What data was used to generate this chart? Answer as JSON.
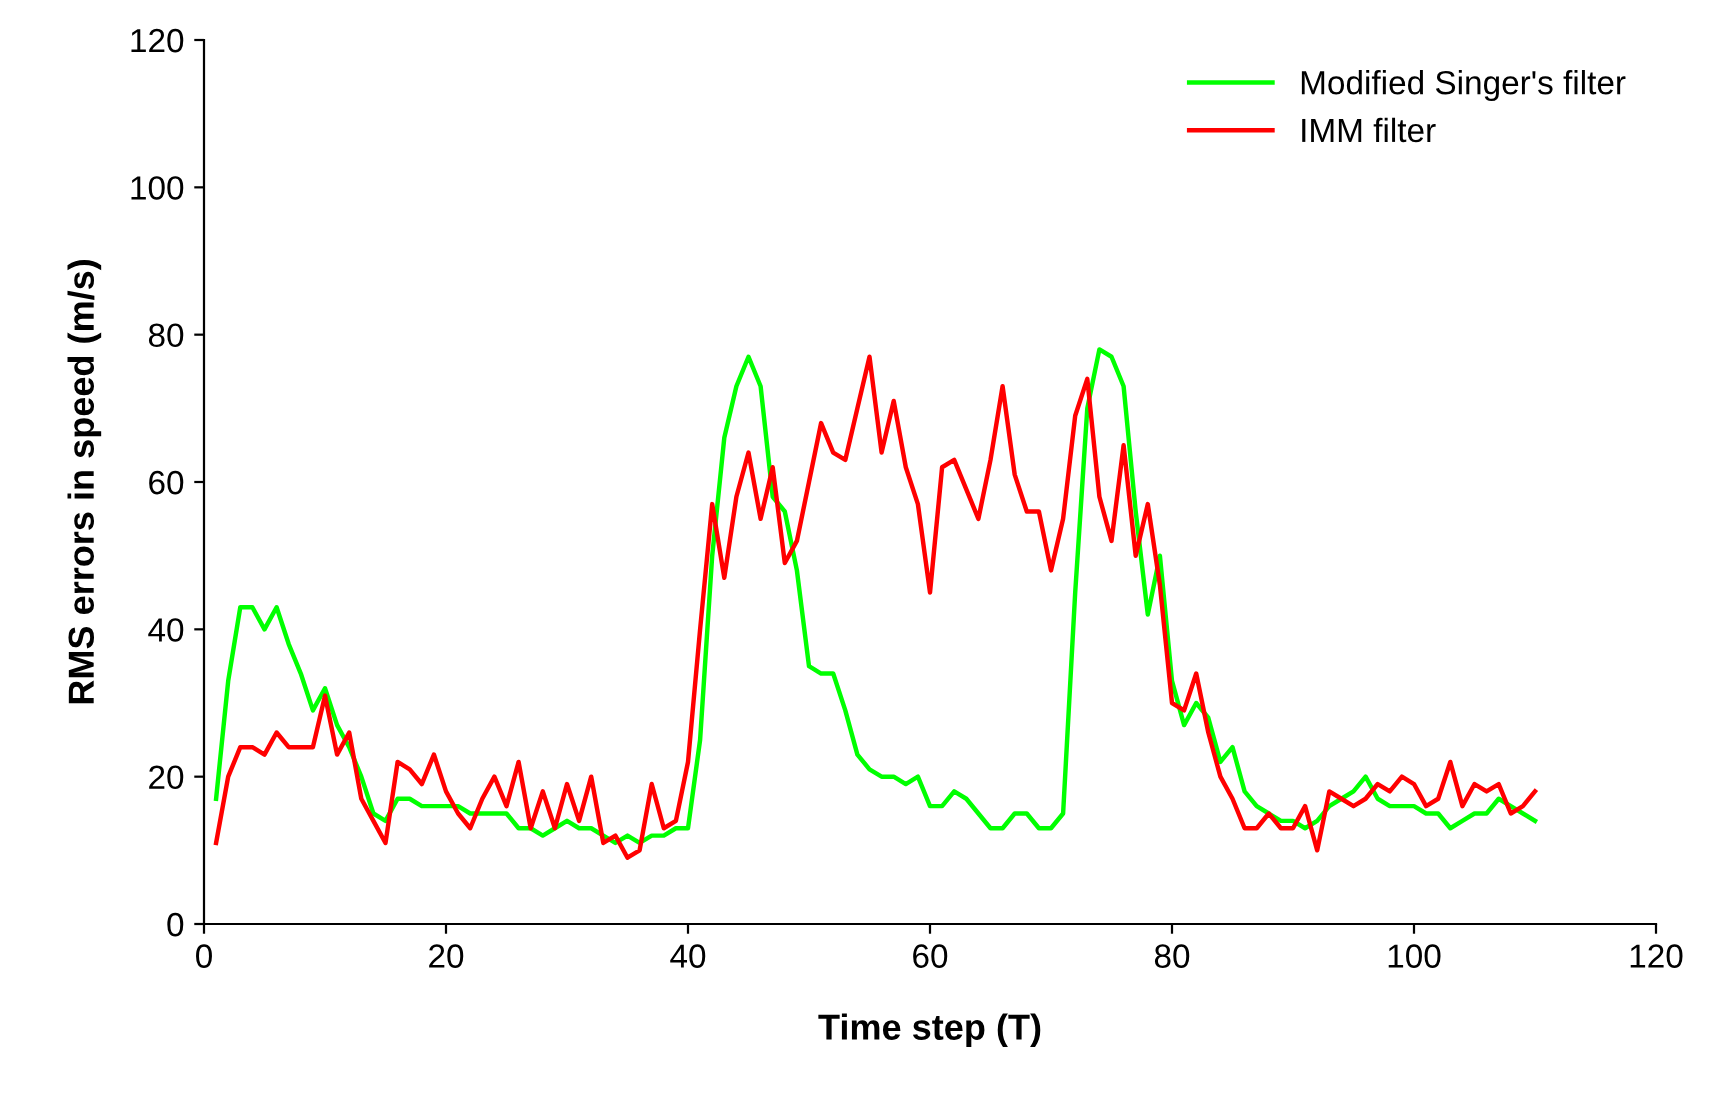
{
  "chart_data": {
    "type": "line",
    "xlabel": "Time step (T)",
    "ylabel": "RMS errors in speed (m/s)",
    "xlim": [
      0,
      120
    ],
    "xticks": [
      0,
      20,
      40,
      60,
      80,
      100,
      120
    ],
    "ylim": [
      0,
      120
    ],
    "yticks": [
      0,
      20,
      40,
      60,
      80,
      100,
      120
    ],
    "grid": false,
    "legend": "top right",
    "marker": "none",
    "line_style": "solid",
    "x": [
      1,
      2,
      3,
      4,
      5,
      6,
      7,
      8,
      9,
      10,
      11,
      12,
      13,
      14,
      15,
      16,
      17,
      18,
      19,
      20,
      21,
      22,
      23,
      24,
      25,
      26,
      27,
      28,
      29,
      30,
      31,
      32,
      33,
      34,
      35,
      36,
      37,
      38,
      39,
      40,
      41,
      42,
      43,
      44,
      45,
      46,
      47,
      48,
      49,
      50,
      51,
      52,
      53,
      54,
      55,
      56,
      57,
      58,
      59,
      60,
      61,
      62,
      63,
      64,
      65,
      66,
      67,
      68,
      69,
      70,
      71,
      72,
      73,
      74,
      75,
      76,
      77,
      78,
      79,
      80,
      81,
      82,
      83,
      84,
      85,
      86,
      87,
      88,
      89,
      90,
      91,
      92,
      93,
      94,
      95,
      96,
      97,
      98,
      99,
      100,
      101,
      102,
      103,
      104,
      105,
      106,
      107,
      108,
      109,
      110
    ],
    "series": [
      {
        "name": "Modified Singer's filter",
        "color": "#00ff00",
        "values": [
          17,
          33,
          43,
          43,
          40,
          43,
          38,
          34,
          29,
          32,
          27,
          24,
          20,
          15,
          14,
          17,
          17,
          16,
          16,
          16,
          16,
          15,
          15,
          15,
          15,
          13,
          13,
          12,
          13,
          14,
          13,
          13,
          12,
          11,
          12,
          11,
          12,
          12,
          13,
          13,
          25,
          50,
          66,
          73,
          77,
          73,
          58,
          56,
          48,
          35,
          34,
          34,
          29,
          23,
          21,
          20,
          20,
          19,
          20,
          16,
          16,
          18,
          17,
          15,
          13,
          13,
          15,
          15,
          13,
          13,
          15,
          45,
          70,
          78,
          77,
          73,
          56,
          42,
          50,
          33,
          27,
          30,
          28,
          22,
          24,
          18,
          16,
          15,
          14,
          14,
          13,
          14,
          16,
          17,
          18,
          20,
          17,
          16,
          16,
          16,
          15,
          15,
          13,
          14,
          15,
          15,
          17,
          16,
          15,
          14
        ]
      },
      {
        "name": "IMM filter",
        "color": "#ff0000",
        "values": [
          11,
          20,
          24,
          24,
          23,
          26,
          24,
          24,
          24,
          31,
          23,
          26,
          17,
          14,
          11,
          22,
          21,
          19,
          23,
          18,
          15,
          13,
          17,
          20,
          16,
          22,
          13,
          18,
          13,
          19,
          14,
          20,
          11,
          12,
          9,
          10,
          19,
          13,
          14,
          22,
          40,
          57,
          47,
          58,
          64,
          55,
          62,
          49,
          52,
          60,
          68,
          64,
          63,
          70,
          77,
          64,
          71,
          62,
          57,
          45,
          62,
          63,
          59,
          55,
          63,
          73,
          61,
          56,
          56,
          48,
          55,
          69,
          74,
          58,
          52,
          65,
          50,
          57,
          46,
          30,
          29,
          34,
          26,
          20,
          17,
          13,
          13,
          15,
          13,
          13,
          16,
          10,
          18,
          17,
          16,
          17,
          19,
          18,
          20,
          19,
          16,
          17,
          22,
          16,
          19,
          18,
          19,
          15,
          16,
          18
        ]
      }
    ]
  }
}
